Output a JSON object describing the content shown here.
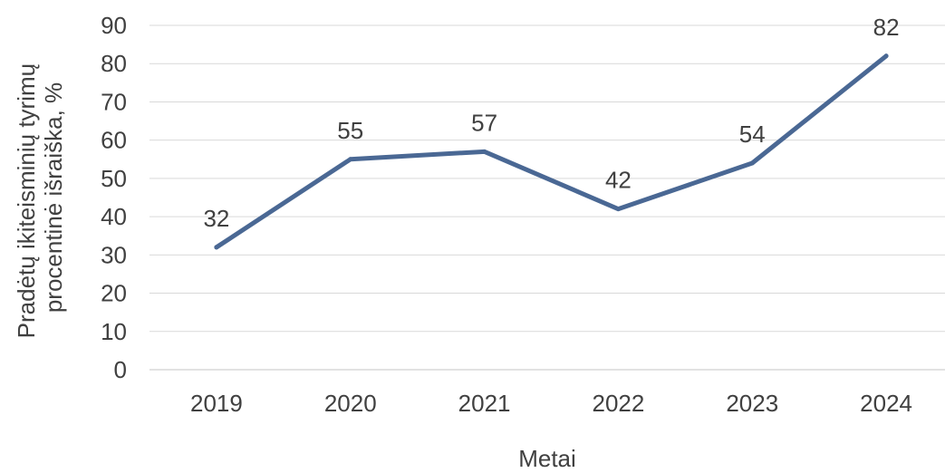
{
  "chart_data": {
    "type": "line",
    "title": "",
    "xlabel": "Metai",
    "ylabel_lines": [
      "Pradėtų ikiteisminių tyrimų",
      "procentinė išraiška, %"
    ],
    "categories": [
      "2019",
      "2020",
      "2021",
      "2022",
      "2023",
      "2024"
    ],
    "series": [
      {
        "values": [
          32,
          55,
          57,
          42,
          54,
          82
        ],
        "color": "#4a6894"
      }
    ],
    "data_labels": [
      "32",
      "55",
      "57",
      "42",
      "54",
      "82"
    ],
    "ylim": [
      0,
      90
    ],
    "yticks": [
      0,
      10,
      20,
      30,
      40,
      50,
      60,
      70,
      80,
      90
    ],
    "ytick_labels": [
      "0",
      "10",
      "20",
      "30",
      "40",
      "50",
      "60",
      "70",
      "80",
      "90"
    ],
    "grid": true,
    "legend": "none",
    "colors": {
      "line": "#4a6894",
      "grid": "#d9d9d9",
      "text": "#404040"
    }
  }
}
